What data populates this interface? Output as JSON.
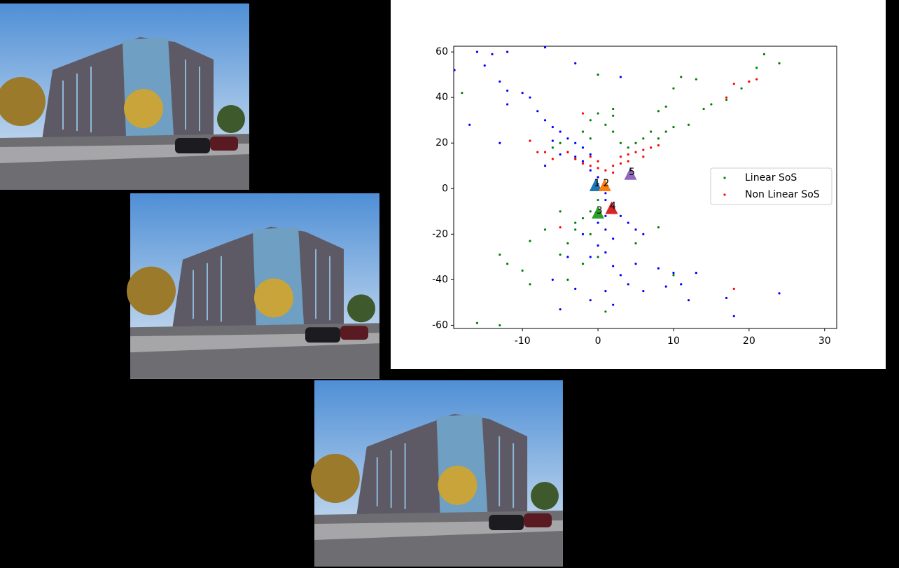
{
  "chart_data": {
    "type": "scatter",
    "xlim": [
      -19.1,
      31.6
    ],
    "ylim": [
      -61.4,
      62.5
    ],
    "xticks": [
      -10,
      0,
      10,
      20,
      30
    ],
    "yticks": [
      -60,
      -40,
      -20,
      0,
      20,
      40,
      60
    ],
    "legend": "right",
    "series": [
      {
        "color": "#0000ff",
        "x": [
          -19,
          -17,
          -16,
          -15,
          -14,
          -12,
          -13,
          -12,
          -12,
          -10,
          -9,
          -8,
          -7,
          -6,
          -5,
          -4,
          -3,
          -2,
          -1,
          -2,
          -3,
          -1,
          0,
          0,
          1,
          1,
          2,
          1,
          0,
          1,
          2,
          0,
          1,
          -1,
          2,
          3,
          4,
          1,
          -1,
          2,
          -3,
          -5,
          -6,
          5,
          6,
          8,
          9,
          10,
          11,
          13,
          12,
          17,
          18,
          24,
          3,
          4,
          5,
          -2,
          -3,
          3,
          -7,
          -13,
          -7,
          -5,
          -6,
          6,
          -4
        ],
        "values": [
          52,
          28,
          60,
          54,
          59,
          60,
          47,
          43,
          37,
          42,
          40,
          34,
          30,
          27,
          25,
          22,
          20,
          18,
          15,
          12,
          14,
          8,
          5,
          2,
          -2,
          -5,
          -8,
          -12,
          -15,
          -18,
          -22,
          -25,
          -28,
          -30,
          -34,
          -38,
          -42,
          -45,
          -49,
          -51,
          -44,
          -53,
          -40,
          -33,
          -45,
          -35,
          -43,
          -37,
          -42,
          -37,
          -49,
          -48,
          -56,
          -46,
          -12,
          -15,
          -18,
          -20,
          55,
          49,
          62,
          20,
          10,
          15,
          21,
          -20,
          -30
        ]
      },
      {
        "name": "Linear SoS",
        "color": "#008000",
        "x": [
          -18,
          -16,
          -13,
          -13,
          -12,
          -9,
          -9,
          -10,
          -7,
          -5,
          -4,
          -3,
          -2,
          -1,
          0,
          -1,
          -3,
          -5,
          -6,
          -5,
          -4,
          -3,
          -2,
          -1,
          0,
          0,
          1,
          2,
          2,
          3,
          4,
          5,
          6,
          7,
          8,
          9,
          10,
          12,
          14,
          15,
          17,
          19,
          20,
          21,
          22,
          24,
          10,
          11,
          13,
          8,
          9,
          10,
          5,
          8,
          1,
          -4,
          -2,
          2,
          -1,
          0
        ],
        "values": [
          42,
          -59,
          -60,
          -29,
          -33,
          -23,
          -42,
          -36,
          -18,
          -29,
          -24,
          -18,
          -13,
          -10,
          -5,
          -20,
          -15,
          -10,
          18,
          20,
          16,
          13,
          25,
          30,
          33,
          50,
          28,
          25,
          32,
          20,
          18,
          20,
          22,
          25,
          22,
          25,
          27,
          28,
          35,
          37,
          39,
          44,
          47,
          53,
          59,
          55,
          44,
          49,
          48,
          34,
          36,
          -38,
          -24,
          -17,
          -54,
          -40,
          -33,
          35,
          22,
          -30
        ]
      },
      {
        "name": "Non Linear SoS",
        "color": "#ff0000",
        "x": [
          -9,
          -5,
          -3,
          -2,
          -1,
          0,
          -2,
          1,
          2,
          3,
          3,
          4,
          5,
          6,
          7,
          8,
          6,
          4,
          2,
          0,
          -1,
          18,
          18,
          20,
          21,
          17,
          -4,
          -6,
          -7,
          -8
        ],
        "values": [
          21,
          -17,
          13,
          11,
          10,
          9,
          33,
          8,
          10,
          11,
          14,
          15,
          16,
          17,
          18,
          19,
          14,
          12,
          7,
          12,
          14,
          -44,
          46,
          47,
          48,
          40,
          16,
          13,
          16,
          16
        ]
      }
    ],
    "cameras": [
      {
        "label": "1",
        "x": -0.3,
        "y": 1,
        "color": "#1f77b4"
      },
      {
        "label": "2",
        "x": 0.9,
        "y": 1,
        "color": "#ff7f0e"
      },
      {
        "label": "3",
        "x": 0,
        "y": -11,
        "color": "#2ca02c"
      },
      {
        "label": "4",
        "x": 1.8,
        "y": -9,
        "color": "#d62728"
      },
      {
        "label": "5",
        "x": 4.3,
        "y": 6,
        "color": "#9467bd"
      }
    ]
  }
}
